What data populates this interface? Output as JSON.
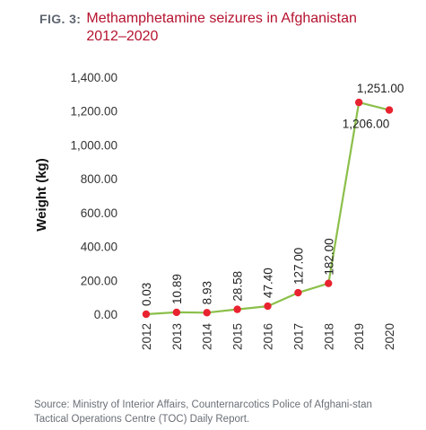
{
  "figure": {
    "label": "FIG. 3:",
    "title": "Methamphetamine seizures in Afghanistan 2012–2020",
    "source": "Source: Ministry of Interior Affairs, Counternarcotics Police of Afghani-stan Tactical Operations Centre (TOC) Daily Report."
  },
  "colors": {
    "line": "#8bbf4a",
    "marker": "#e8232f",
    "title": "#b5122f",
    "axis_text": "#333333"
  },
  "chart_data": {
    "type": "line",
    "title": "Methamphetamine seizures in Afghanistan 2012–2020",
    "xlabel": "",
    "ylabel": "Weight (kg)",
    "x": [
      "2012",
      "2013",
      "2014",
      "2015",
      "2016",
      "2017",
      "2018",
      "2019",
      "2020"
    ],
    "values": [
      0.03,
      10.89,
      8.93,
      28.58,
      47.4,
      127.0,
      182.0,
      1251.0,
      1206.0
    ],
    "labels": [
      "0.03",
      "10.89",
      "8.93",
      "28.58",
      "47.40",
      "127.00",
      "182.00",
      "1,251.00",
      "1,206.00"
    ],
    "ylim": [
      0,
      1400
    ],
    "yticks": [
      0,
      200,
      400,
      600,
      800,
      1000,
      1200,
      1400
    ],
    "ytick_labels": [
      "0.00",
      "200.00",
      "400.00",
      "600.00",
      "800.00",
      "1,000.00",
      "1,200.00",
      "1,400.00"
    ],
    "grid": false,
    "legend": "none"
  }
}
